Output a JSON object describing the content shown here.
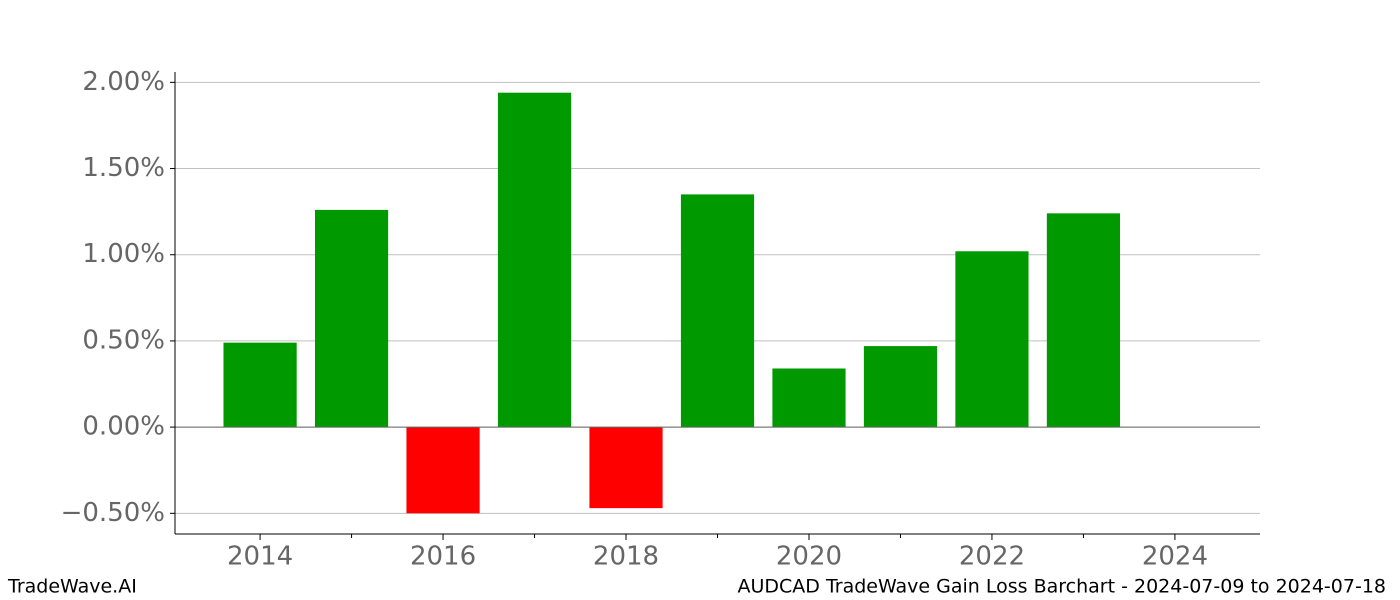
{
  "chart_data": {
    "type": "bar",
    "title": "AUDCAD TradeWave Gain Loss Barchart - 2024-07-09 to 2024-07-18",
    "watermark": "TradeWave.AI",
    "x": [
      2014,
      2015,
      2016,
      2017,
      2018,
      2019,
      2020,
      2021,
      2022,
      2023
    ],
    "values": [
      0.49,
      1.26,
      -0.5,
      1.94,
      -0.47,
      1.35,
      0.34,
      0.47,
      1.02,
      1.24
    ],
    "positive_color": "#009900",
    "negative_color": "#ff0000",
    "xlim": [
      2013.07,
      2024.93
    ],
    "xticks": [
      2014,
      2016,
      2018,
      2020,
      2022,
      2024
    ],
    "xminorticks": [
      2015,
      2017,
      2019,
      2021,
      2023
    ],
    "ylim": [
      -0.62,
      2.06
    ],
    "yticks": [
      {
        "value": -0.5,
        "label": "−0.50%"
      },
      {
        "value": 0,
        "label": "0.00%"
      },
      {
        "value": 0.5,
        "label": "0.50%"
      },
      {
        "value": 1,
        "label": "1.00%"
      },
      {
        "value": 1.5,
        "label": "1.50%"
      },
      {
        "value": 2,
        "label": "2.00%"
      }
    ],
    "grid": true
  }
}
